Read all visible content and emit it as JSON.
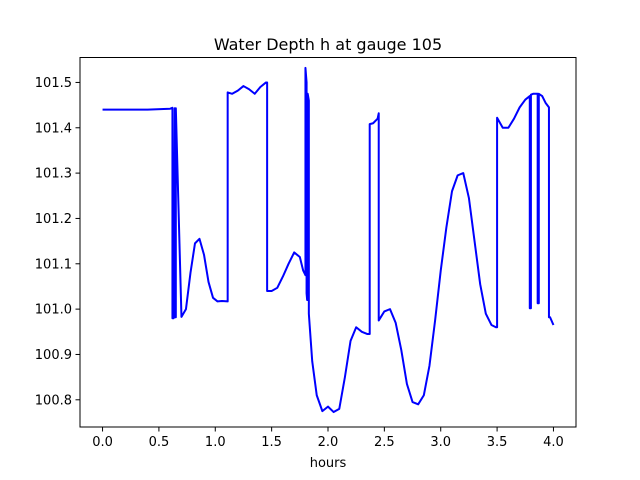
{
  "chart_data": {
    "type": "line",
    "title": "Water Depth h at gauge 105",
    "xlabel": "hours",
    "ylabel": "",
    "xlim": [
      -0.2,
      4.2
    ],
    "ylim": [
      100.74,
      101.555
    ],
    "xticks": [
      0.0,
      0.5,
      1.0,
      1.5,
      2.0,
      2.5,
      3.0,
      3.5,
      4.0
    ],
    "xtick_labels": [
      "0.0",
      "0.5",
      "1.0",
      "1.5",
      "2.0",
      "2.5",
      "3.0",
      "3.5",
      "4.0"
    ],
    "yticks": [
      100.8,
      100.9,
      101.0,
      101.1,
      101.2,
      101.3,
      101.4,
      101.5
    ],
    "ytick_labels": [
      "100.8",
      "100.9",
      "101.0",
      "101.1",
      "101.2",
      "101.3",
      "101.4",
      "101.5"
    ],
    "grid": false,
    "line_color": "#0000ff",
    "series": [
      {
        "x": [
          0.0,
          0.4,
          0.6,
          0.62,
          0.62,
          0.63,
          0.64,
          0.64,
          0.65,
          0.65,
          0.7,
          0.74,
          0.78,
          0.82,
          0.86,
          0.9,
          0.94,
          0.98,
          1.02,
          1.06,
          1.11,
          1.11,
          1.15,
          1.2,
          1.25,
          1.3,
          1.35,
          1.4,
          1.45,
          1.46,
          1.46,
          1.5,
          1.55,
          1.6,
          1.65,
          1.7,
          1.75,
          1.78,
          1.8,
          1.8,
          1.81,
          1.81,
          1.815,
          1.82,
          1.82,
          1.83,
          1.83,
          1.84,
          1.86,
          1.9,
          1.95,
          2.0,
          2.05,
          2.1,
          2.15,
          2.2,
          2.25,
          2.3,
          2.35,
          2.37,
          2.37,
          2.4,
          2.44,
          2.45,
          2.45,
          2.5,
          2.55,
          2.6,
          2.65,
          2.7,
          2.75,
          2.8,
          2.85,
          2.9,
          2.95,
          3.0,
          3.05,
          3.1,
          3.15,
          3.2,
          3.25,
          3.3,
          3.35,
          3.4,
          3.45,
          3.49,
          3.5,
          3.5,
          3.55,
          3.6,
          3.65,
          3.7,
          3.75,
          3.79,
          3.79,
          3.8,
          3.8,
          3.82,
          3.84,
          3.86,
          3.86,
          3.87,
          3.87,
          3.9,
          3.93,
          3.96,
          3.96,
          3.97,
          4.0
        ],
        "y": [
          101.44,
          101.44,
          101.442,
          101.444,
          100.98,
          100.98,
          101.443,
          100.982,
          100.982,
          101.443,
          100.983,
          101.0,
          101.08,
          101.145,
          101.155,
          101.12,
          101.06,
          101.025,
          101.017,
          101.018,
          101.017,
          101.478,
          101.475,
          101.482,
          101.492,
          101.485,
          101.475,
          101.49,
          101.5,
          101.5,
          101.04,
          101.04,
          101.047,
          101.072,
          101.1,
          101.125,
          101.115,
          101.085,
          101.075,
          101.532,
          101.5,
          101.035,
          101.02,
          101.02,
          101.475,
          101.46,
          100.99,
          100.955,
          100.885,
          100.81,
          100.775,
          100.785,
          100.773,
          100.78,
          100.85,
          100.93,
          100.96,
          100.95,
          100.945,
          100.945,
          101.408,
          101.41,
          101.42,
          101.432,
          100.975,
          100.995,
          101.0,
          100.97,
          100.91,
          100.835,
          100.795,
          100.79,
          100.81,
          100.875,
          100.975,
          101.085,
          101.18,
          101.26,
          101.295,
          101.3,
          101.245,
          101.15,
          101.055,
          100.99,
          100.965,
          100.96,
          100.96,
          101.422,
          101.4,
          101.4,
          101.42,
          101.445,
          101.462,
          101.47,
          101.002,
          101.002,
          101.473,
          101.475,
          101.475,
          101.475,
          101.013,
          101.013,
          101.475,
          101.47,
          101.455,
          101.445,
          100.982,
          100.982,
          100.965
        ]
      }
    ]
  }
}
